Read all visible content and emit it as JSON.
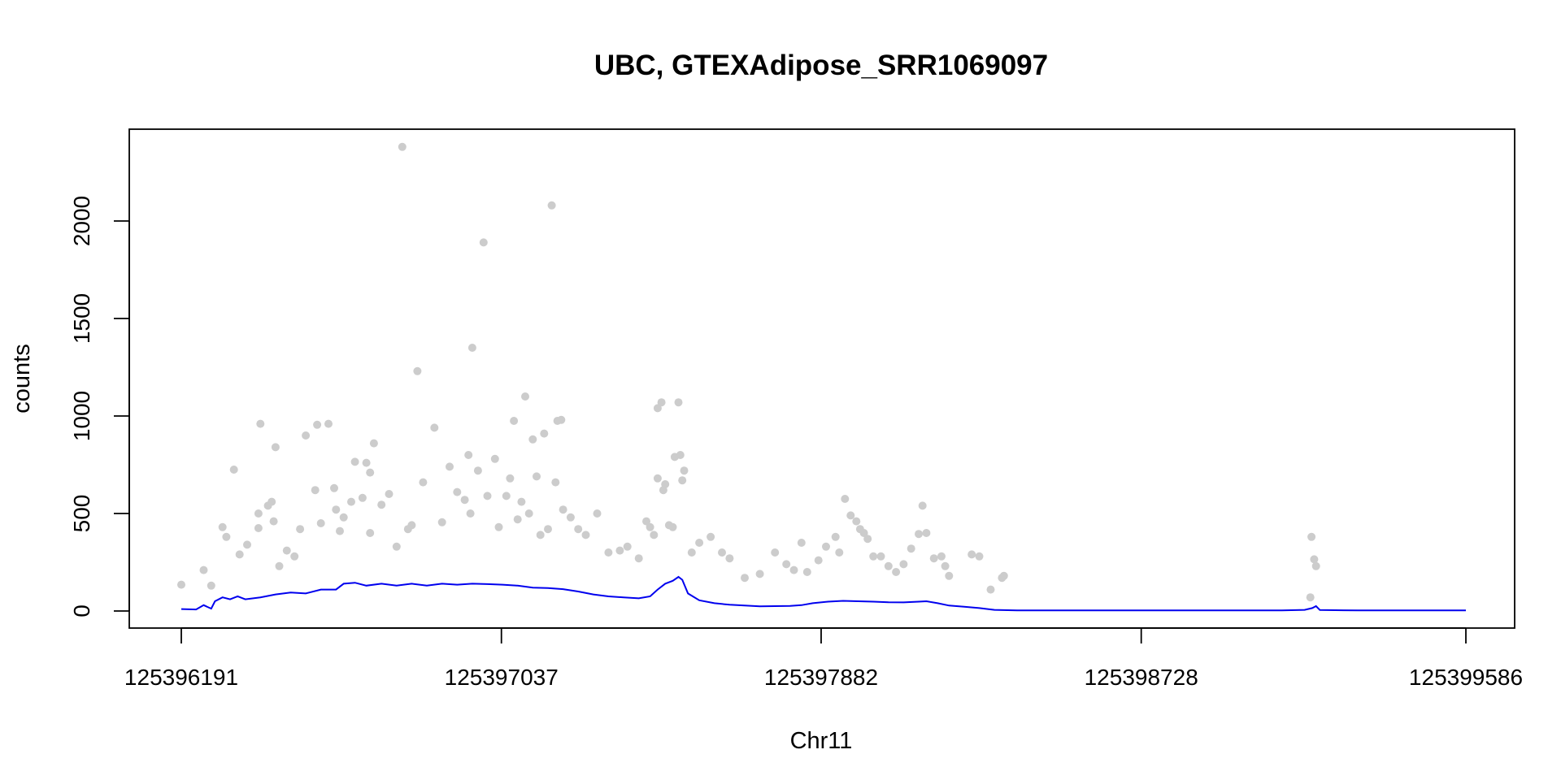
{
  "chart_data": {
    "type": "scatter",
    "title": "UBC, GTEXAdipose_SRR1069097",
    "xlabel": "Chr11",
    "ylabel": "counts",
    "xlim": [
      125396191,
      125399586
    ],
    "ylim": [
      0,
      2390
    ],
    "x_ticks": [
      125396191,
      125397037,
      125397882,
      125398728,
      125399586
    ],
    "x_tick_labels": [
      "125396191",
      "125397037",
      "125397882",
      "125398728",
      "125399586"
    ],
    "y_ticks": [
      0,
      500,
      1000,
      1500,
      2000
    ],
    "y_tick_labels": [
      "0",
      "500",
      "1000",
      "1500",
      "2000"
    ],
    "grid": false,
    "colors": {
      "points": "#cccccc",
      "line": "#0000ee",
      "frame": "#000000"
    },
    "series": [
      {
        "type": "scatter",
        "points": [
          [
            125396191,
            135
          ],
          [
            125396250,
            210
          ],
          [
            125396270,
            130
          ],
          [
            125396300,
            430
          ],
          [
            125396310,
            380
          ],
          [
            125396330,
            725
          ],
          [
            125396345,
            290
          ],
          [
            125396365,
            340
          ],
          [
            125396395,
            500
          ],
          [
            125396420,
            540
          ],
          [
            125396395,
            425
          ],
          [
            125396450,
            230
          ],
          [
            125396400,
            960
          ],
          [
            125396430,
            560
          ],
          [
            125396435,
            460
          ],
          [
            125396440,
            840
          ],
          [
            125396470,
            310
          ],
          [
            125396490,
            280
          ],
          [
            125396505,
            420
          ],
          [
            125396520,
            900
          ],
          [
            125396545,
            620
          ],
          [
            125396550,
            955
          ],
          [
            125396560,
            450
          ],
          [
            125396580,
            960
          ],
          [
            125396595,
            630
          ],
          [
            125396600,
            520
          ],
          [
            125396610,
            410
          ],
          [
            125396620,
            480
          ],
          [
            125396640,
            560
          ],
          [
            125396650,
            765
          ],
          [
            125396670,
            580
          ],
          [
            125396680,
            760
          ],
          [
            125396690,
            710
          ],
          [
            125396700,
            860
          ],
          [
            125396690,
            400
          ],
          [
            125396720,
            545
          ],
          [
            125396740,
            600
          ],
          [
            125396760,
            330
          ],
          [
            125396775,
            2380
          ],
          [
            125396790,
            420
          ],
          [
            125396800,
            440
          ],
          [
            125396815,
            1230
          ],
          [
            125396830,
            660
          ],
          [
            125396860,
            940
          ],
          [
            125396880,
            455
          ],
          [
            125396900,
            740
          ],
          [
            125396920,
            610
          ],
          [
            125396940,
            570
          ],
          [
            125396950,
            800
          ],
          [
            125396955,
            500
          ],
          [
            125396960,
            1350
          ],
          [
            125396975,
            720
          ],
          [
            125396990,
            1890
          ],
          [
            125397000,
            590
          ],
          [
            125397020,
            780
          ],
          [
            125397030,
            430
          ],
          [
            125397050,
            590
          ],
          [
            125397060,
            680
          ],
          [
            125397070,
            975
          ],
          [
            125397080,
            470
          ],
          [
            125397090,
            560
          ],
          [
            125397100,
            1100
          ],
          [
            125397110,
            500
          ],
          [
            125397120,
            880
          ],
          [
            125397130,
            690
          ],
          [
            125397140,
            390
          ],
          [
            125397150,
            910
          ],
          [
            125397160,
            420
          ],
          [
            125397170,
            2080
          ],
          [
            125397180,
            660
          ],
          [
            125397185,
            975
          ],
          [
            125397195,
            980
          ],
          [
            125397200,
            520
          ],
          [
            125397220,
            480
          ],
          [
            125397240,
            420
          ],
          [
            125397260,
            390
          ],
          [
            125397290,
            500
          ],
          [
            125397320,
            300
          ],
          [
            125397350,
            310
          ],
          [
            125397370,
            330
          ],
          [
            125397400,
            270
          ],
          [
            125397420,
            460
          ],
          [
            125397430,
            430
          ],
          [
            125397440,
            390
          ],
          [
            125397450,
            1040
          ],
          [
            125397460,
            1070
          ],
          [
            125397470,
            650
          ],
          [
            125397480,
            440
          ],
          [
            125397490,
            430
          ],
          [
            125397495,
            790
          ],
          [
            125397505,
            1070
          ],
          [
            125397510,
            800
          ],
          [
            125397515,
            670
          ],
          [
            125397520,
            720
          ],
          [
            125397450,
            680
          ],
          [
            125397465,
            620
          ],
          [
            125397540,
            300
          ],
          [
            125397560,
            350
          ],
          [
            125397590,
            380
          ],
          [
            125397620,
            300
          ],
          [
            125397640,
            270
          ],
          [
            125397680,
            170
          ],
          [
            125397720,
            190
          ],
          [
            125397760,
            300
          ],
          [
            125397790,
            240
          ],
          [
            125397810,
            210
          ],
          [
            125397830,
            350
          ],
          [
            125397845,
            200
          ],
          [
            125397875,
            260
          ],
          [
            125397895,
            330
          ],
          [
            125397920,
            380
          ],
          [
            125397930,
            300
          ],
          [
            125397945,
            575
          ],
          [
            125397960,
            490
          ],
          [
            125397975,
            460
          ],
          [
            125397985,
            420
          ],
          [
            125397995,
            400
          ],
          [
            125398005,
            370
          ],
          [
            125398020,
            280
          ],
          [
            125398040,
            280
          ],
          [
            125398060,
            230
          ],
          [
            125398080,
            200
          ],
          [
            125398100,
            240
          ],
          [
            125398120,
            320
          ],
          [
            125398150,
            540
          ],
          [
            125398140,
            395
          ],
          [
            125398160,
            400
          ],
          [
            125398180,
            270
          ],
          [
            125398200,
            280
          ],
          [
            125398210,
            230
          ],
          [
            125398220,
            180
          ],
          [
            125398280,
            290
          ],
          [
            125398300,
            280
          ],
          [
            125398330,
            110
          ],
          [
            125398360,
            170
          ],
          [
            125398365,
            180
          ],
          [
            125399178,
            380
          ],
          [
            125399185,
            265
          ],
          [
            125399190,
            230
          ],
          [
            125399175,
            70
          ]
        ]
      },
      {
        "type": "line",
        "points": [
          [
            125396191,
            10
          ],
          [
            125396230,
            8
          ],
          [
            125396250,
            30
          ],
          [
            125396270,
            12
          ],
          [
            125396280,
            50
          ],
          [
            125396300,
            70
          ],
          [
            125396320,
            60
          ],
          [
            125396340,
            75
          ],
          [
            125396360,
            60
          ],
          [
            125396400,
            70
          ],
          [
            125396440,
            85
          ],
          [
            125396480,
            95
          ],
          [
            125396520,
            90
          ],
          [
            125396560,
            110
          ],
          [
            125396600,
            110
          ],
          [
            125396620,
            140
          ],
          [
            125396650,
            145
          ],
          [
            125396680,
            130
          ],
          [
            125396720,
            140
          ],
          [
            125396760,
            130
          ],
          [
            125396800,
            140
          ],
          [
            125396840,
            130
          ],
          [
            125396880,
            140
          ],
          [
            125396920,
            135
          ],
          [
            125396960,
            140
          ],
          [
            125397000,
            138
          ],
          [
            125397040,
            135
          ],
          [
            125397080,
            130
          ],
          [
            125397120,
            120
          ],
          [
            125397160,
            118
          ],
          [
            125397200,
            112
          ],
          [
            125397240,
            100
          ],
          [
            125397280,
            85
          ],
          [
            125397320,
            75
          ],
          [
            125397360,
            70
          ],
          [
            125397400,
            65
          ],
          [
            125397430,
            75
          ],
          [
            125397450,
            110
          ],
          [
            125397470,
            140
          ],
          [
            125397490,
            155
          ],
          [
            125397505,
            175
          ],
          [
            125397515,
            160
          ],
          [
            125397530,
            90
          ],
          [
            125397560,
            55
          ],
          [
            125397600,
            40
          ],
          [
            125397640,
            32
          ],
          [
            125397680,
            28
          ],
          [
            125397720,
            24
          ],
          [
            125397760,
            25
          ],
          [
            125397800,
            26
          ],
          [
            125397830,
            30
          ],
          [
            125397860,
            40
          ],
          [
            125397900,
            48
          ],
          [
            125397940,
            52
          ],
          [
            125397980,
            50
          ],
          [
            125398020,
            48
          ],
          [
            125398060,
            45
          ],
          [
            125398100,
            44
          ],
          [
            125398140,
            48
          ],
          [
            125398160,
            50
          ],
          [
            125398190,
            40
          ],
          [
            125398220,
            28
          ],
          [
            125398260,
            22
          ],
          [
            125398300,
            15
          ],
          [
            125398340,
            6
          ],
          [
            125398400,
            3
          ],
          [
            125398500,
            3
          ],
          [
            125398700,
            3
          ],
          [
            125398900,
            3
          ],
          [
            125399100,
            3
          ],
          [
            125399160,
            6
          ],
          [
            125399180,
            15
          ],
          [
            125399190,
            25
          ],
          [
            125399200,
            5
          ],
          [
            125399300,
            3
          ],
          [
            125399450,
            3
          ],
          [
            125399586,
            3
          ]
        ]
      }
    ]
  }
}
